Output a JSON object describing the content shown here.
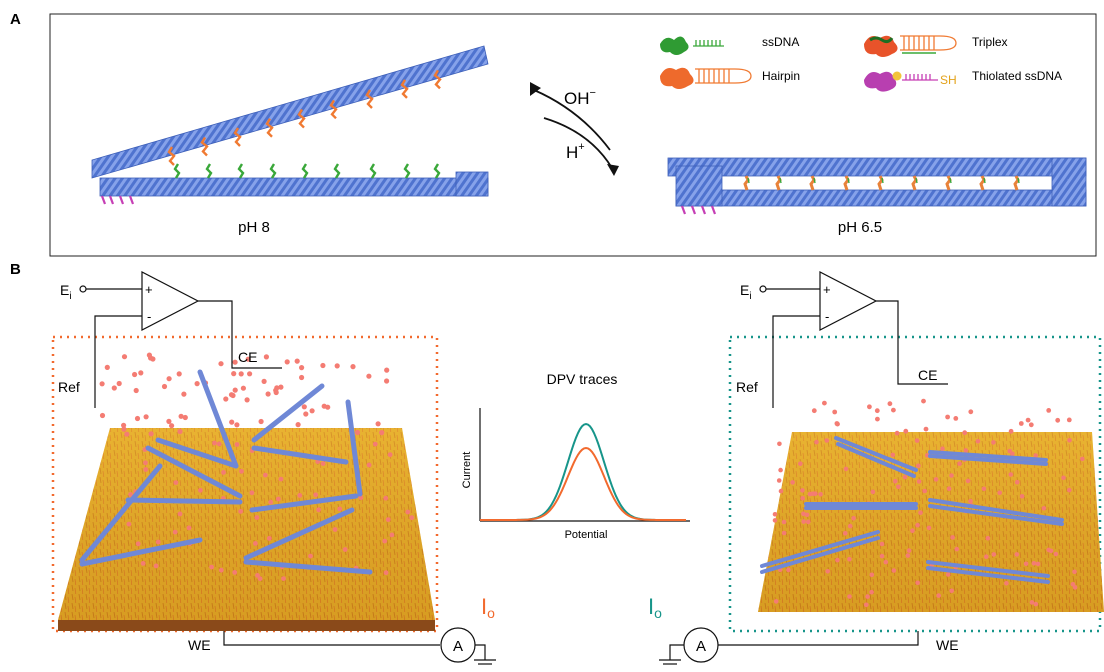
{
  "panel_a": {
    "label": "A",
    "left_state": "pH 8",
    "right_state": "pH 6.5",
    "ion_top": "OH",
    "ion_top_sup": "−",
    "ion_bottom": "H",
    "ion_bottom_sup": "+",
    "legend": [
      {
        "text": "ssDNA"
      },
      {
        "text": "Triplex"
      },
      {
        "text": "Hairpin"
      },
      {
        "text": "Thiolated ssDNA",
        "suffix": "SH"
      }
    ]
  },
  "panel_b": {
    "label": "B",
    "left_circuit": {
      "ei_main": "E",
      "ei_sub": "i",
      "plus": "+",
      "minus": "-",
      "ce": "CE",
      "ref": "Ref",
      "we": "WE",
      "ammeter": "A",
      "current_main": "I",
      "current_sub": "o"
    },
    "right_circuit": {
      "ei_main": "E",
      "ei_sub": "i",
      "plus": "+",
      "minus": "-",
      "ce": "CE",
      "ref": "Ref",
      "we": "WE",
      "ammeter": "A",
      "current_main": "I",
      "current_sub": "o"
    },
    "dpv": {
      "title": "DPV traces",
      "xlabel": "Potential",
      "ylabel": "Current"
    }
  },
  "colors": {
    "origami_blue": "#5b7fd6",
    "hairpin_orange": "#f07a32",
    "ssdna_green": "#3aa83a",
    "thiol_magenta": "#c63fb5",
    "gold": "#e5aa2a",
    "teal": "#17958a",
    "orange_box": "#f26a2e"
  },
  "chart_data": {
    "type": "line",
    "title": "DPV traces",
    "xlabel": "Potential",
    "ylabel": "Current",
    "series": [
      {
        "color": "#17958a",
        "peak": 1.0
      },
      {
        "color": "#f26a2e",
        "peak": 0.75
      }
    ],
    "grid": false
  }
}
